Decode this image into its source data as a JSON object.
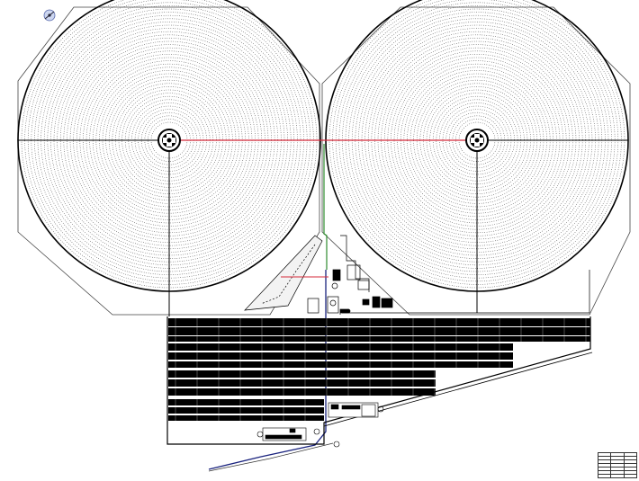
{
  "drawing": {
    "title": "",
    "colors": {
      "line": "#000000",
      "red_line": "#d42a3a",
      "green_line": "#2e8b2e",
      "blue_line": "#1a237e",
      "panel_fill": "#000000",
      "compass": "#5566aa"
    }
  },
  "rev_table": {
    "rows": [
      [
        "",
        "",
        ""
      ],
      [
        "",
        "",
        ""
      ],
      [
        "",
        "",
        ""
      ],
      [
        "",
        "",
        ""
      ],
      [
        "",
        "",
        ""
      ],
      [
        "",
        "",
        ""
      ],
      [
        "",
        "",
        ""
      ]
    ]
  }
}
